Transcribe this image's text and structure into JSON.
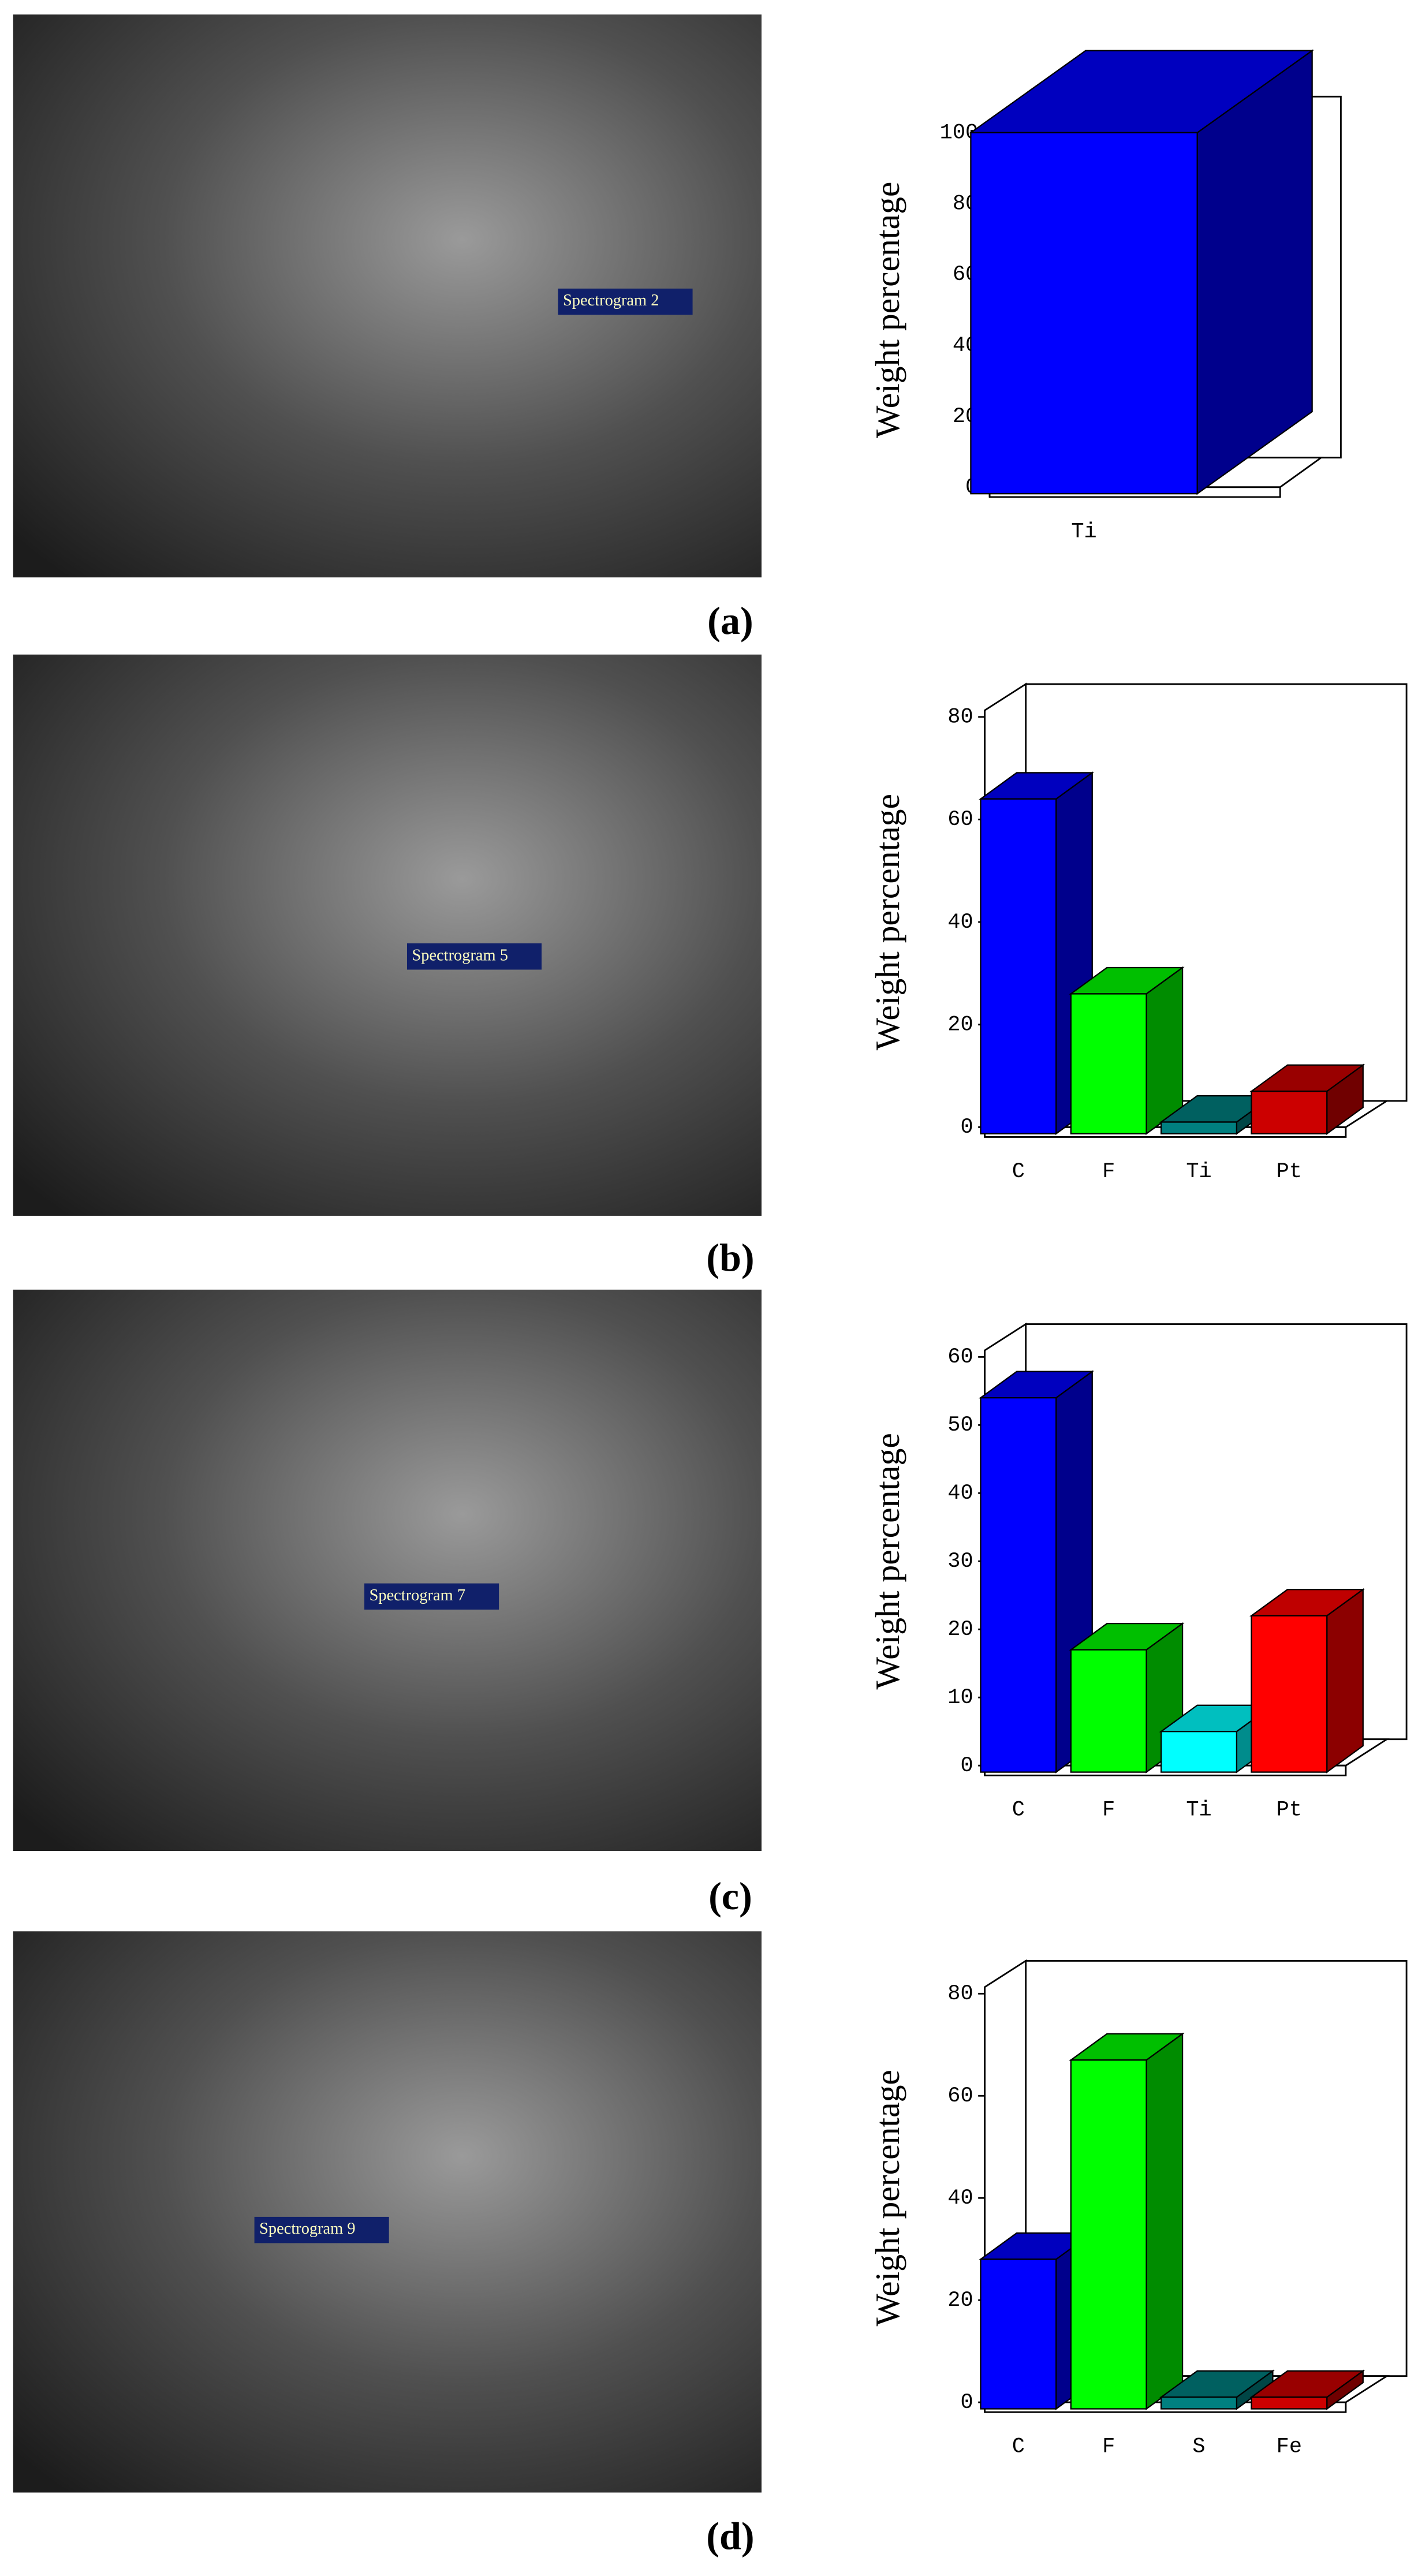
{
  "chart_data": [
    {
      "type": "bar3d",
      "categories": [
        "Ti"
      ],
      "values": [
        100
      ],
      "colors": [
        "#0000ff"
      ],
      "y_label": "Weight percentage",
      "ylim": [
        0,
        100
      ],
      "yticks": [
        0,
        20,
        40,
        60,
        80,
        100
      ]
    },
    {
      "type": "bar3d",
      "categories": [
        "C",
        "F",
        "Ti",
        "Pt"
      ],
      "values": [
        64,
        26,
        1,
        7
      ],
      "colors": [
        "#0000ff",
        "#00ff00",
        "#008080",
        "#cc0000"
      ],
      "y_label": "Weight percentage",
      "ylim": [
        0,
        80
      ],
      "yticks": [
        0,
        20,
        40,
        60,
        80
      ]
    },
    {
      "type": "bar3d",
      "categories": [
        "C",
        "F",
        "Ti",
        "Pt"
      ],
      "values": [
        54,
        17,
        5,
        22
      ],
      "colors": [
        "#0000ff",
        "#00ff00",
        "#00ffff",
        "#ff0000"
      ],
      "y_label": "Weight percentage",
      "ylim": [
        0,
        60
      ],
      "yticks": [
        0,
        10,
        20,
        30,
        40,
        50,
        60
      ]
    },
    {
      "type": "bar3d",
      "categories": [
        "C",
        "F",
        "S",
        "Fe"
      ],
      "values": [
        28,
        67,
        1,
        1
      ],
      "colors": [
        "#0000ff",
        "#00ff00",
        "#008080",
        "#cc0000"
      ],
      "y_label": "Weight percentage",
      "ylim": [
        0,
        80
      ],
      "yticks": [
        0,
        20,
        40,
        60,
        80
      ]
    }
  ],
  "panels": [
    {
      "spectrogram": "Spectrogram 2",
      "caption": "(a)"
    },
    {
      "spectrogram": "Spectrogram 5",
      "caption": "(b)"
    },
    {
      "spectrogram": "Spectrogram 7",
      "caption": "(c)"
    },
    {
      "spectrogram": "Spectrogram 9",
      "caption": "(d)"
    }
  ]
}
